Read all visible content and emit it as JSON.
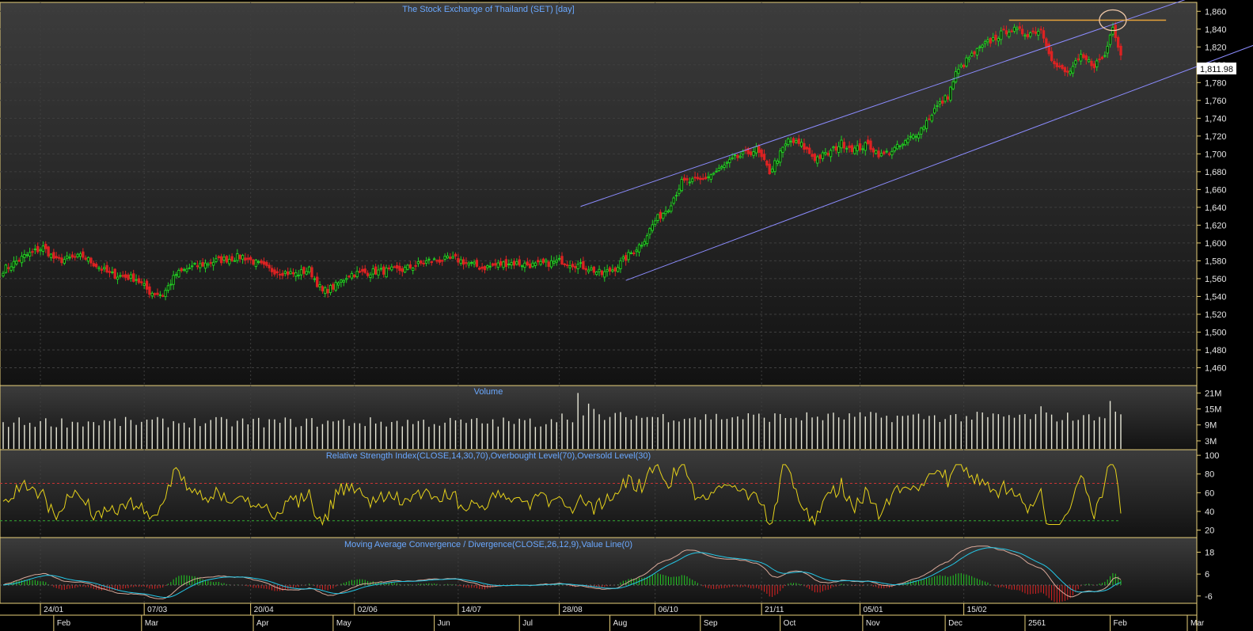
{
  "colors": {
    "background": "#000000",
    "panel_top": "#3a3a3a",
    "panel_bottom": "#141414",
    "panel_border": "#e8d07a",
    "title": "#6aa8ff",
    "up": "#22cc22",
    "down": "#dd2222",
    "volume": "#e8e8d8",
    "rsi_line": "#e6d21a",
    "overbought": "#cc3333",
    "oversold": "#33aa33",
    "macd_line": "#d9a99a",
    "signal_line": "#24c8e8",
    "channel": "#8c8cff",
    "resistance": "#e6a23a",
    "circle": "#f0c8a8"
  },
  "chart_data": [
    {
      "type": "candlestick",
      "title": "The Stock Exchange of Thailand (SET) [day]",
      "ylim": [
        1440,
        1870
      ],
      "yticks": [
        "1,860",
        "1,840",
        "1,820",
        "1,800",
        "1,780",
        "1,760",
        "1,740",
        "1,720",
        "1,700",
        "1,680",
        "1,660",
        "1,640",
        "1,620",
        "1,600",
        "1,580",
        "1,560",
        "1,540",
        "1,520",
        "1,500",
        "1,480",
        "1,460"
      ],
      "last_value": "1,811.98",
      "close_anchors": [
        [
          0,
          1570
        ],
        [
          8,
          1585
        ],
        [
          15,
          1595
        ],
        [
          20,
          1580
        ],
        [
          30,
          1585
        ],
        [
          40,
          1565
        ],
        [
          50,
          1560
        ],
        [
          55,
          1545
        ],
        [
          60,
          1542
        ],
        [
          65,
          1565
        ],
        [
          70,
          1572
        ],
        [
          80,
          1580
        ],
        [
          90,
          1585
        ],
        [
          100,
          1570
        ],
        [
          110,
          1565
        ],
        [
          115,
          1570
        ],
        [
          120,
          1545
        ],
        [
          125,
          1552
        ],
        [
          130,
          1565
        ],
        [
          140,
          1568
        ],
        [
          150,
          1570
        ],
        [
          160,
          1580
        ],
        [
          170,
          1582
        ],
        [
          180,
          1572
        ],
        [
          190,
          1578
        ],
        [
          200,
          1575
        ],
        [
          210,
          1580
        ],
        [
          220,
          1572
        ],
        [
          225,
          1565
        ],
        [
          230,
          1572
        ],
        [
          240,
          1600
        ],
        [
          245,
          1625
        ],
        [
          250,
          1640
        ],
        [
          255,
          1668
        ],
        [
          262,
          1670
        ],
        [
          268,
          1680
        ],
        [
          275,
          1695
        ],
        [
          283,
          1705
        ],
        [
          288,
          1680
        ],
        [
          295,
          1715
        ],
        [
          300,
          1710
        ],
        [
          305,
          1695
        ],
        [
          310,
          1700
        ],
        [
          315,
          1712
        ],
        [
          320,
          1705
        ],
        [
          325,
          1710
        ],
        [
          330,
          1698
        ],
        [
          338,
          1710
        ],
        [
          345,
          1728
        ],
        [
          350,
          1750
        ],
        [
          355,
          1765
        ],
        [
          358,
          1790
        ],
        [
          363,
          1808
        ],
        [
          370,
          1825
        ],
        [
          378,
          1840
        ],
        [
          385,
          1835
        ],
        [
          390,
          1840
        ],
        [
          395,
          1800
        ],
        [
          400,
          1790
        ],
        [
          405,
          1808
        ],
        [
          410,
          1800
        ],
        [
          414,
          1810
        ],
        [
          417,
          1845
        ],
        [
          420,
          1812
        ]
      ],
      "count": 421,
      "channel_upper": [
        [
          "day 217",
          1641
        ],
        [
          "day 451",
          1880
        ]
      ],
      "channel_lower": [
        [
          "day 234",
          1558
        ],
        [
          "day 470",
          1822
        ]
      ],
      "resistance_level": 1850
    },
    {
      "type": "bar",
      "title": "Volume",
      "yticks": [
        "21M",
        "15M",
        "9M",
        "3M"
      ],
      "ylim": [
        0,
        22
      ]
    },
    {
      "type": "line",
      "title": "Relative Strength Index(CLOSE,14,30,70),Overbought Level(70),Oversold Level(30)",
      "ylim": [
        12,
        106
      ],
      "yticks": [
        "100",
        "80",
        "60",
        "40",
        "20"
      ],
      "overbought": 70,
      "oversold": 30
    },
    {
      "type": "line",
      "title": "Moving Average Convergence / Divergence(CLOSE,26,12,9),Value Line(0)",
      "ylim": [
        -10,
        26
      ],
      "yticks": [
        "18",
        "6",
        "-6"
      ]
    }
  ],
  "x_axis": {
    "top_labels": [
      "24/01",
      "07/03",
      "20/04",
      "02/06",
      "14/07",
      "28/08",
      "06/10",
      "21/11",
      "05/01",
      "15/02"
    ],
    "bottom_labels": [
      "Feb",
      "Mar",
      "Apr",
      "May",
      "Jun",
      "Jul",
      "Aug",
      "Sep",
      "Oct",
      "Nov",
      "Dec",
      "2561",
      "Feb",
      "Mar"
    ]
  }
}
